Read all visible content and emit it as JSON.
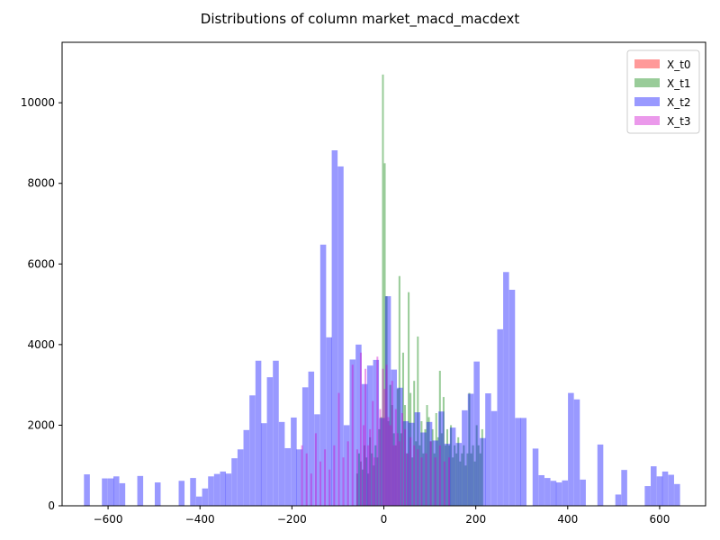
{
  "chart_data": {
    "type": "bar",
    "title": "Distributions of column market_macd_macdext",
    "xlabel": "",
    "ylabel": "",
    "xlim": [
      -700,
      700
    ],
    "ylim": [
      0,
      11500
    ],
    "xticks": [
      -600,
      -400,
      -200,
      0,
      200,
      400,
      600
    ],
    "yticks": [
      0,
      2000,
      4000,
      6000,
      8000,
      10000
    ],
    "legend_position": "top-right",
    "series": [
      {
        "name": "X_t0",
        "color": "#ff0000",
        "opacity": 0.4,
        "bin_width": 4,
        "bins": []
      },
      {
        "name": "X_t1",
        "color": "#008000",
        "opacity": 0.4,
        "bin_width": 4,
        "bins": [
          [
            -2,
            10700
          ],
          [
            2,
            8500
          ],
          [
            6,
            5200
          ],
          [
            10,
            2100
          ],
          [
            14,
            3000
          ],
          [
            18,
            2500
          ],
          [
            22,
            1800
          ],
          [
            26,
            1500
          ],
          [
            30,
            2900
          ],
          [
            34,
            5700
          ],
          [
            38,
            1800
          ],
          [
            42,
            3800
          ],
          [
            46,
            2500
          ],
          [
            50,
            1300
          ],
          [
            54,
            5300
          ],
          [
            58,
            2800
          ],
          [
            62,
            1200
          ],
          [
            66,
            3100
          ],
          [
            70,
            1600
          ],
          [
            74,
            4200
          ],
          [
            78,
            1500
          ],
          [
            82,
            2100
          ],
          [
            86,
            1300
          ],
          [
            90,
            1900
          ],
          [
            94,
            2500
          ],
          [
            98,
            2200
          ],
          [
            102,
            1600
          ],
          [
            106,
            1900
          ],
          [
            110,
            1300
          ],
          [
            114,
            2300
          ],
          [
            118,
            1700
          ],
          [
            122,
            3350
          ],
          [
            126,
            1800
          ],
          [
            130,
            2700
          ],
          [
            134,
            1500
          ],
          [
            138,
            1900
          ],
          [
            142,
            1500
          ],
          [
            146,
            2000
          ],
          [
            150,
            1200
          ],
          [
            154,
            1500
          ],
          [
            158,
            1300
          ],
          [
            162,
            1700
          ],
          [
            166,
            1100
          ],
          [
            170,
            1300
          ],
          [
            174,
            1500
          ],
          [
            178,
            1000
          ],
          [
            182,
            1300
          ],
          [
            186,
            2800
          ],
          [
            190,
            1300
          ],
          [
            194,
            1500
          ],
          [
            198,
            1100
          ],
          [
            202,
            2000
          ],
          [
            206,
            1500
          ],
          [
            210,
            1300
          ],
          [
            214,
            1900
          ],
          [
            -6,
            2200
          ],
          [
            -10,
            1900
          ],
          [
            -14,
            1200
          ],
          [
            -18,
            1500
          ],
          [
            -22,
            1000
          ],
          [
            -26,
            1300
          ],
          [
            -30,
            1700
          ],
          [
            -34,
            800
          ],
          [
            -38,
            1200
          ],
          [
            -42,
            1500
          ],
          [
            -46,
            900
          ],
          [
            -50,
            1100
          ],
          [
            -54,
            1300
          ],
          [
            -58,
            800
          ]
        ]
      },
      {
        "name": "X_t2",
        "color": "#0000ff",
        "opacity": 0.4,
        "bin_width": 12.8,
        "bins": [
          [
            -646,
            780
          ],
          [
            -607,
            680
          ],
          [
            -594,
            680
          ],
          [
            -582,
            730
          ],
          [
            -569,
            560
          ],
          [
            -530,
            740
          ],
          [
            -492,
            580
          ],
          [
            -440,
            620
          ],
          [
            -415,
            690
          ],
          [
            -402,
            230
          ],
          [
            -389,
            430
          ],
          [
            -376,
            730
          ],
          [
            -363,
            790
          ],
          [
            -350,
            850
          ],
          [
            -338,
            800
          ],
          [
            -325,
            1180
          ],
          [
            -312,
            1400
          ],
          [
            -299,
            1880
          ],
          [
            -286,
            2740
          ],
          [
            -273,
            3600
          ],
          [
            -261,
            2050
          ],
          [
            -248,
            3190
          ],
          [
            -235,
            3600
          ],
          [
            -222,
            2080
          ],
          [
            -209,
            1430
          ],
          [
            -196,
            2190
          ],
          [
            -184,
            1400
          ],
          [
            -171,
            2940
          ],
          [
            -158,
            3330
          ],
          [
            -145,
            2270
          ],
          [
            -132,
            6480
          ],
          [
            -119,
            4180
          ],
          [
            -107,
            8820
          ],
          [
            -94,
            8420
          ],
          [
            -81,
            2000
          ],
          [
            -68,
            3630
          ],
          [
            -55,
            4000
          ],
          [
            -42,
            3020
          ],
          [
            -30,
            3480
          ],
          [
            -17,
            3620
          ],
          [
            -4,
            2180
          ],
          [
            9,
            5200
          ],
          [
            22,
            3380
          ],
          [
            35,
            2930
          ],
          [
            48,
            2100
          ],
          [
            60,
            2060
          ],
          [
            73,
            2320
          ],
          [
            86,
            1820
          ],
          [
            99,
            2080
          ],
          [
            112,
            1620
          ],
          [
            125,
            2340
          ],
          [
            138,
            1540
          ],
          [
            150,
            1940
          ],
          [
            163,
            1560
          ],
          [
            176,
            2370
          ],
          [
            189,
            2780
          ],
          [
            202,
            3580
          ],
          [
            215,
            1680
          ],
          [
            227,
            2790
          ],
          [
            240,
            2350
          ],
          [
            253,
            4380
          ],
          [
            266,
            5800
          ],
          [
            279,
            5360
          ],
          [
            292,
            2180
          ],
          [
            304,
            2180
          ],
          [
            330,
            1420
          ],
          [
            343,
            760
          ],
          [
            356,
            690
          ],
          [
            369,
            620
          ],
          [
            381,
            580
          ],
          [
            394,
            630
          ],
          [
            407,
            2800
          ],
          [
            420,
            2640
          ],
          [
            433,
            650
          ],
          [
            471,
            1520
          ],
          [
            510,
            280
          ],
          [
            523,
            890
          ],
          [
            574,
            490
          ],
          [
            587,
            980
          ],
          [
            600,
            730
          ],
          [
            612,
            850
          ],
          [
            625,
            770
          ],
          [
            638,
            540
          ]
        ]
      },
      {
        "name": "X_t3",
        "color": "#cc00cc",
        "opacity": 0.4,
        "bin_width": 4,
        "bins": [
          [
            -178,
            1500
          ],
          [
            -168,
            1300
          ],
          [
            -158,
            800
          ],
          [
            -148,
            1800
          ],
          [
            -138,
            1100
          ],
          [
            -128,
            1400
          ],
          [
            -118,
            900
          ],
          [
            -108,
            1500
          ],
          [
            -98,
            2800
          ],
          [
            -88,
            1200
          ],
          [
            -78,
            1600
          ],
          [
            -68,
            3500
          ],
          [
            -58,
            1400
          ],
          [
            -50,
            3800
          ],
          [
            -44,
            2000
          ],
          [
            -40,
            3400
          ],
          [
            -34,
            1500
          ],
          [
            -30,
            1900
          ],
          [
            -24,
            2600
          ],
          [
            -20,
            1200
          ],
          [
            -14,
            3700
          ],
          [
            -8,
            2400
          ],
          [
            -2,
            3400
          ],
          [
            2,
            2900
          ],
          [
            6,
            3500
          ],
          [
            10,
            2200
          ],
          [
            14,
            2000
          ],
          [
            18,
            3100
          ],
          [
            22,
            1500
          ],
          [
            26,
            2400
          ],
          [
            30,
            1800
          ],
          [
            34,
            1600
          ],
          [
            40,
            2300
          ],
          [
            46,
            1900
          ],
          [
            52,
            1300
          ],
          [
            58,
            1700
          ],
          [
            66,
            1500
          ],
          [
            74,
            1400
          ],
          [
            82,
            1200
          ],
          [
            92,
            1300
          ],
          [
            102,
            1600
          ],
          [
            112,
            1200
          ],
          [
            122,
            1500
          ],
          [
            132,
            1100
          ],
          [
            142,
            1200
          ]
        ]
      }
    ]
  }
}
